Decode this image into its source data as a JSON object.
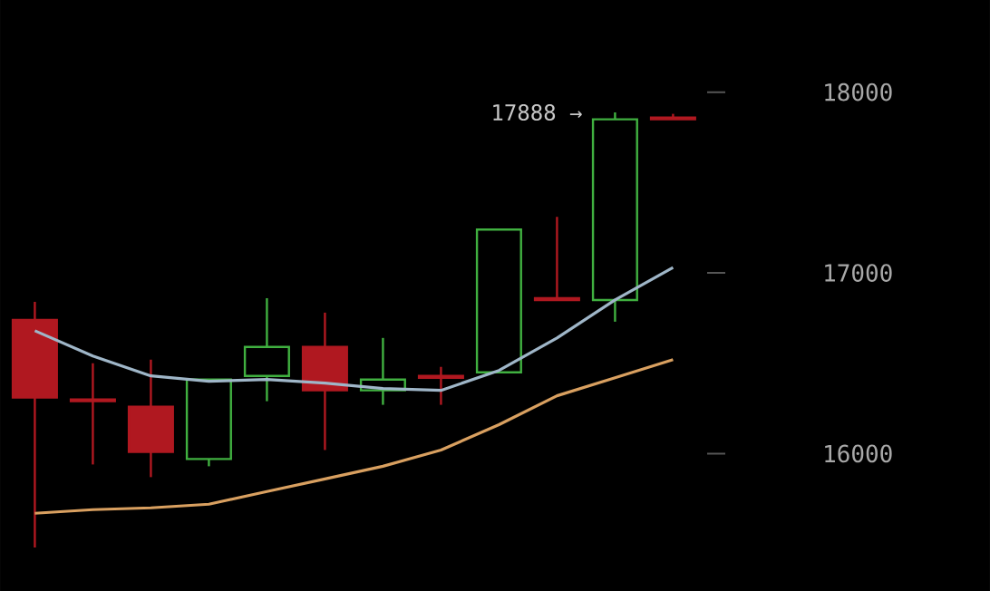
{
  "chart_data": {
    "type": "candlestick",
    "categories": [
      null,
      null,
      null,
      null,
      null,
      null,
      null,
      null,
      null,
      null,
      null,
      null
    ],
    "ohlc": [
      [
        16740,
        16840,
        15480,
        16310
      ],
      [
        16300,
        16500,
        15940,
        16290
      ],
      [
        16260,
        16520,
        15870,
        16010
      ],
      [
        15970,
        16410,
        15930,
        16410
      ],
      [
        16430,
        16860,
        16290,
        16590
      ],
      [
        16590,
        16780,
        16020,
        16350
      ],
      [
        16350,
        16640,
        16270,
        16410
      ],
      [
        16430,
        16480,
        16270,
        16420
      ],
      [
        16450,
        17240,
        16450,
        17240
      ],
      [
        16860,
        17310,
        16850,
        16850
      ],
      [
        16850,
        17888,
        16730,
        17850
      ],
      [
        17860,
        17880,
        17850,
        17850
      ]
    ],
    "colors": [
      "#b01820",
      "#b01820",
      "#b01820",
      "#40b040",
      "#40b040",
      "#b01820",
      "#40b040",
      "#b01820",
      "#40b040",
      "#b01820",
      "#40b040",
      "#b01820"
    ],
    "series": [
      {
        "type": "line",
        "color": "#9fb6c8",
        "values": [
          16680,
          16540,
          16430,
          16400,
          16410,
          16390,
          16360,
          16350,
          16460,
          16640,
          16850,
          17030
        ]
      },
      {
        "type": "line",
        "color": "#d9a060",
        "values": [
          15670,
          15690,
          15700,
          15720,
          15790,
          15860,
          15930,
          16020,
          16160,
          16320,
          16420,
          16520
        ]
      }
    ],
    "ylim": [
      15240,
      18510
    ],
    "yticks": [
      16000,
      17000,
      18000
    ],
    "tick_labels": "y",
    "annotations": [
      "17888 →"
    ]
  }
}
